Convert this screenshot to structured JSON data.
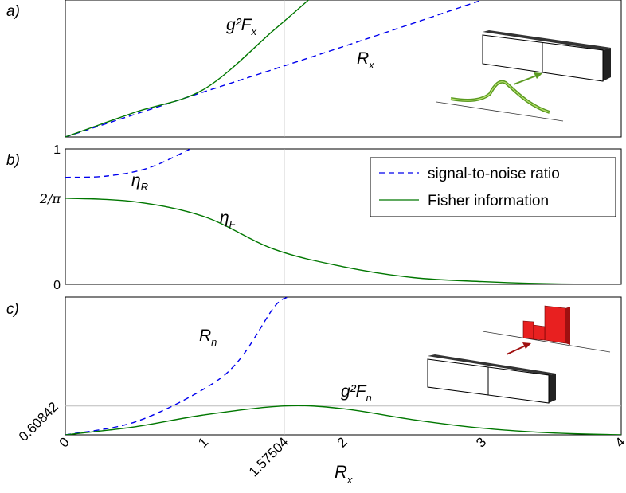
{
  "chart_data": {
    "type": "line",
    "x_axis": {
      "label_main": "R",
      "label_sub": "x",
      "xlim": [
        0,
        4
      ],
      "ticks": [
        0,
        1,
        1.57504,
        2,
        3,
        4
      ],
      "tick_labels": [
        "0",
        "1",
        "1.57504",
        "2",
        "3",
        "4"
      ],
      "vertical_marker": 1.57504
    },
    "panels": [
      {
        "tag": "a)",
        "ylim": [
          0,
          1
        ],
        "yticks": [],
        "series": [
          {
            "style": "dashed",
            "color": "#0000ee",
            "label_main": "R",
            "label_sub": "x",
            "x": [
              0,
              1,
              2,
              3
            ],
            "y": [
              0.0,
              0.33,
              0.66,
              1.0
            ]
          },
          {
            "style": "solid",
            "color": "#007700",
            "label_main": "g²F",
            "label_sub": "x",
            "x": [
              0,
              0.5,
              1.0,
              1.5,
              1.75
            ],
            "y": [
              0.0,
              0.18,
              0.35,
              0.78,
              1.0
            ]
          }
        ],
        "inset": "waveform-to-detector"
      },
      {
        "tag": "b)",
        "ylim": [
          0,
          1
        ],
        "ytick_labels": [
          "0",
          "2/π",
          "1"
        ],
        "ytick_values": [
          0,
          0.6366,
          1
        ],
        "series": [
          {
            "style": "dashed",
            "color": "#0000ee",
            "label_main": "η",
            "label_sub": "R",
            "x": [
              0,
              0.3,
              0.6,
              0.9
            ],
            "y": [
              0.79,
              0.8,
              0.86,
              1.0
            ]
          },
          {
            "style": "solid",
            "color": "#007700",
            "label_main": "η",
            "label_sub": "F",
            "x": [
              0,
              0.5,
              1.0,
              1.5,
              2.0,
              2.5,
              3.0,
              3.5,
              4.0
            ],
            "y": [
              0.6366,
              0.61,
              0.5,
              0.26,
              0.13,
              0.05,
              0.02,
              0.004,
              0.0
            ]
          }
        ],
        "legend": [
          {
            "text": "signal-to-noise ratio",
            "style": "dashed",
            "color": "#0000ee"
          },
          {
            "text": "Fisher information",
            "style": "solid",
            "color": "#007700"
          }
        ]
      },
      {
        "tag": "c)",
        "ylim": [
          0,
          2.9
        ],
        "ytick_labels": [
          "0.60842"
        ],
        "ytick_values": [
          0.60842
        ],
        "series": [
          {
            "style": "dashed",
            "color": "#0000ee",
            "label_main": "R",
            "label_sub": "n",
            "x": [
              0,
              0.5,
              1.0,
              1.25,
              1.5,
              1.6
            ],
            "y": [
              0.0,
              0.27,
              0.97,
              1.57,
              2.68,
              2.9
            ]
          },
          {
            "style": "solid",
            "color": "#007700",
            "label_main": "g²F",
            "label_sub": "n",
            "x": [
              0,
              0.5,
              1.0,
              1.57504,
              2.0,
              2.5,
              3.0,
              3.5,
              4.0
            ],
            "y": [
              0.0,
              0.17,
              0.42,
              0.60842,
              0.55,
              0.32,
              0.14,
              0.04,
              0.0
            ]
          }
        ],
        "inset": "detector-to-histogram"
      }
    ]
  }
}
